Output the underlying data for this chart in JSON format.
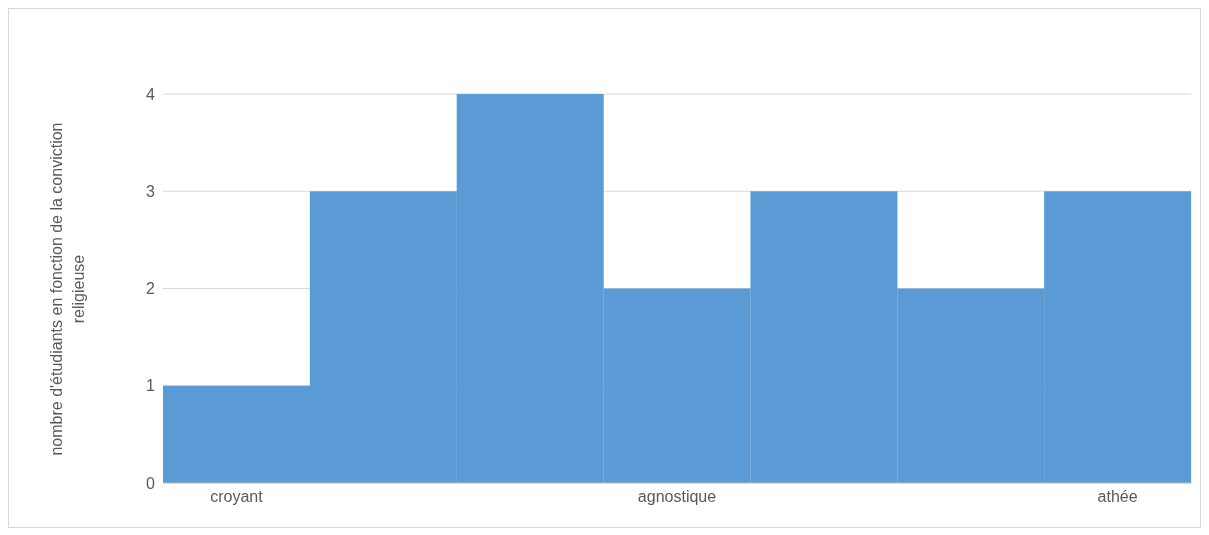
{
  "chart_data": {
    "type": "bar",
    "ylabel": "nombre d'étudiants en fonction de la conviction religieuse",
    "categories": [
      "croyant",
      null,
      null,
      "agnostique",
      null,
      null,
      "athée"
    ],
    "values": [
      1,
      3,
      4,
      2,
      3,
      2,
      3
    ],
    "color": "#5b9bd5",
    "ylim": [
      0,
      4
    ],
    "yticks": [
      0,
      1,
      2,
      3,
      4
    ],
    "grid": "y",
    "legend": false
  }
}
